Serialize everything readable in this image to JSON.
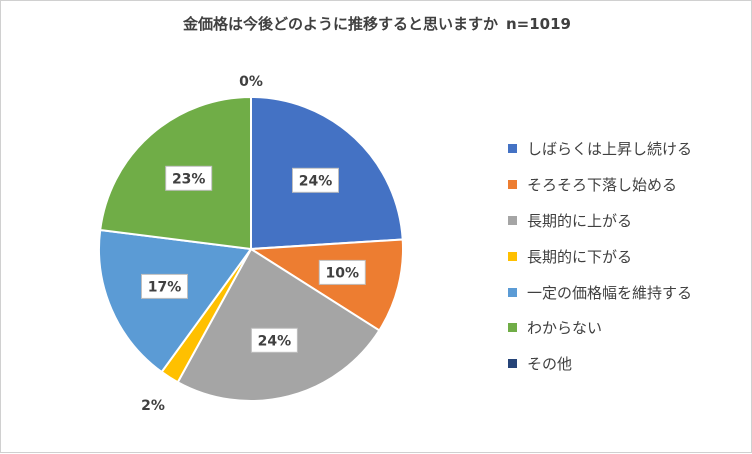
{
  "chart_data": {
    "type": "pie",
    "title": "金価格は今後どのように推移すると思いますか",
    "sample_size": "n=1019",
    "legend_position": "right",
    "series": [
      {
        "name": "しばらくは上昇し続ける",
        "value": 24,
        "label": "24%",
        "color": "#4472C4"
      },
      {
        "name": "そろそろ下落し始める",
        "value": 10,
        "label": "10%",
        "color": "#ED7D31"
      },
      {
        "name": "長期的に上がる",
        "value": 24,
        "label": "24%",
        "color": "#A5A5A5"
      },
      {
        "name": "長期的に下がる",
        "value": 2,
        "label": "2%",
        "color": "#FFC000"
      },
      {
        "name": "一定の価格幅を維持する",
        "value": 17,
        "label": "17%",
        "color": "#5B9BD5"
      },
      {
        "name": "わからない",
        "value": 23,
        "label": "23%",
        "color": "#70AD47"
      },
      {
        "name": "その他",
        "value": 0,
        "label": "0%",
        "color": "#264478"
      }
    ]
  }
}
